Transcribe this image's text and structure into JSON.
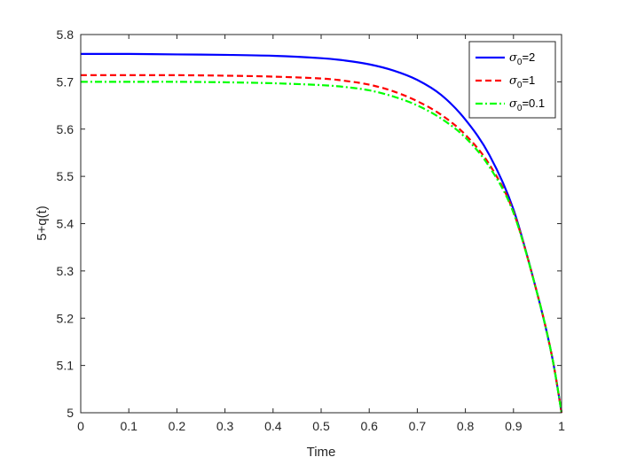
{
  "chart_data": {
    "type": "line",
    "xlabel": "Time",
    "ylabel": "5+q(t)",
    "xlim": [
      0,
      1
    ],
    "ylim": [
      5,
      5.8
    ],
    "xticks": [
      "0",
      "0.1",
      "0.2",
      "0.3",
      "0.4",
      "0.5",
      "0.6",
      "0.7",
      "0.8",
      "0.9",
      "1"
    ],
    "yticks": [
      "5",
      "5.1",
      "5.2",
      "5.3",
      "5.4",
      "5.5",
      "5.6",
      "5.7",
      "5.8"
    ],
    "grid": false,
    "legend_position": "top-right",
    "x": [
      0,
      0.1,
      0.2,
      0.3,
      0.4,
      0.5,
      0.55,
      0.6,
      0.65,
      0.7,
      0.75,
      0.8,
      0.85,
      0.9,
      0.95,
      0.98,
      1.0
    ],
    "series": [
      {
        "name": "σ0=2",
        "symbol": "σ",
        "subscript": "0",
        "suffix": "=2",
        "color": "#0000ff",
        "dash": "solid",
        "values": [
          5.759,
          5.759,
          5.758,
          5.757,
          5.755,
          5.75,
          5.745,
          5.737,
          5.724,
          5.704,
          5.672,
          5.62,
          5.545,
          5.43,
          5.25,
          5.12,
          5.0
        ]
      },
      {
        "name": "σ0=1",
        "symbol": "σ",
        "subscript": "0",
        "suffix": "=1",
        "color": "#ff0000",
        "dash": "dashed",
        "values": [
          5.714,
          5.714,
          5.714,
          5.713,
          5.711,
          5.707,
          5.702,
          5.694,
          5.68,
          5.659,
          5.63,
          5.588,
          5.525,
          5.425,
          5.25,
          5.12,
          5.0
        ]
      },
      {
        "name": "σ0=0.1",
        "symbol": "σ",
        "subscript": "0",
        "suffix": "=0.1",
        "color": "#00ff00",
        "dash": "dashdot",
        "values": [
          5.7,
          5.7,
          5.7,
          5.699,
          5.697,
          5.693,
          5.689,
          5.682,
          5.669,
          5.65,
          5.622,
          5.582,
          5.52,
          5.423,
          5.25,
          5.12,
          5.0
        ]
      }
    ]
  }
}
